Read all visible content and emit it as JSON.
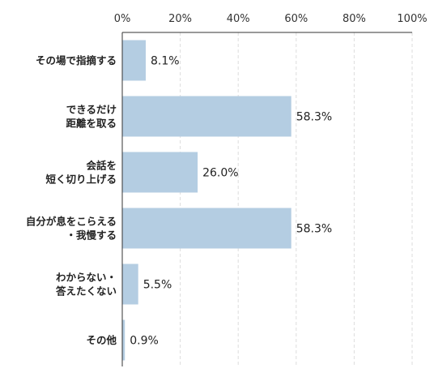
{
  "chart_data": {
    "type": "bar",
    "orientation": "horizontal",
    "categories": [
      [
        "その場で指摘する"
      ],
      [
        "できるだけ",
        "距離を取る"
      ],
      [
        "会話を",
        "短く切り上げる"
      ],
      [
        "自分が息をこらえる",
        "・我慢する"
      ],
      [
        "わからない・",
        "答えたくない"
      ],
      [
        "その他"
      ]
    ],
    "values": [
      8.1,
      58.3,
      26.0,
      58.3,
      5.5,
      0.9
    ],
    "value_labels": [
      "8.1%",
      "58.3%",
      "26.0%",
      "58.3%",
      "5.5%",
      "0.9%"
    ],
    "xlim": [
      0,
      100
    ],
    "xticks": [
      0,
      20,
      40,
      60,
      80,
      100
    ],
    "xtick_labels": [
      "0%",
      "20%",
      "40%",
      "60%",
      "80%",
      "100%"
    ],
    "axis_position": "top",
    "grid": true,
    "colors": {
      "bar": "#b4cde2",
      "grid": "#dddddd",
      "axis": "#333333"
    }
  }
}
